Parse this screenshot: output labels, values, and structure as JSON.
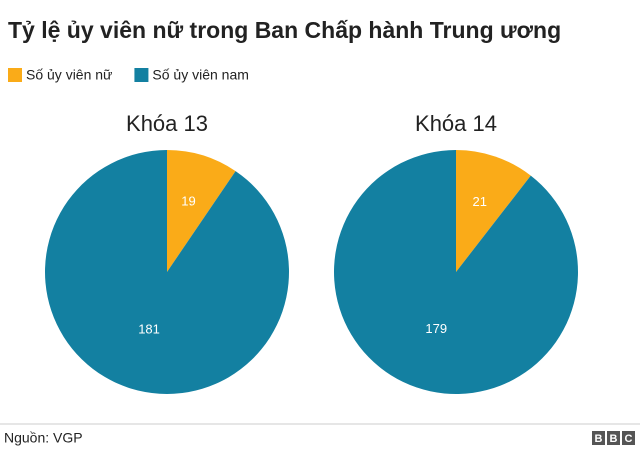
{
  "title": "Tỷ lệ ủy viên nữ trong Ban Chấp hành Trung ương",
  "source": "Nguồn: VGP",
  "logo": [
    "B",
    "B",
    "C"
  ],
  "chart_data": [
    {
      "type": "pie",
      "title": "Khóa 13",
      "categories": [
        "Số ủy viên nữ",
        "Số ủy viên nam"
      ],
      "values": [
        19,
        181
      ],
      "colors": [
        "#FAAB18",
        "#1380A1"
      ]
    },
    {
      "type": "pie",
      "title": "Khóa 14",
      "categories": [
        "Số ủy viên nữ",
        "Số ủy viên nam"
      ],
      "values": [
        21,
        179
      ],
      "colors": [
        "#FAAB18",
        "#1380A1"
      ]
    }
  ]
}
